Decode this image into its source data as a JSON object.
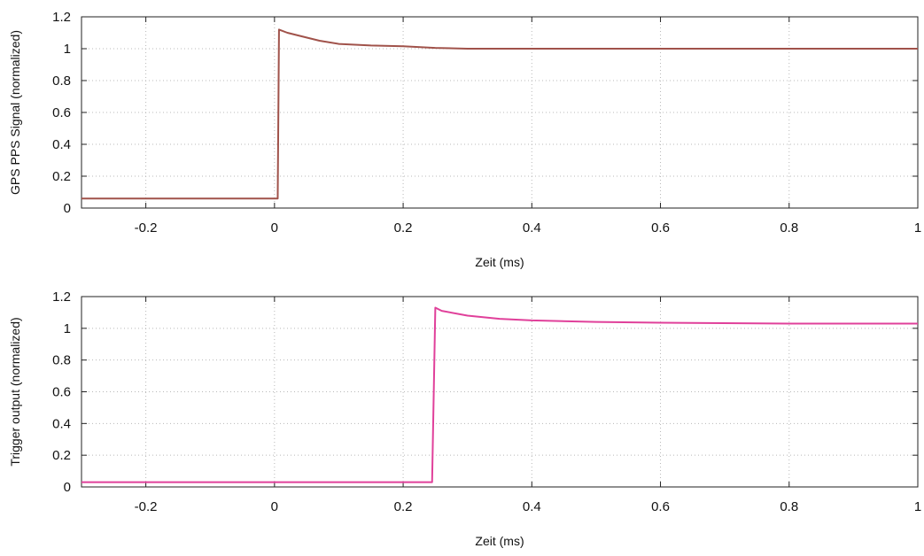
{
  "chart_data": [
    {
      "type": "line",
      "xlabel": "Zeit (ms)",
      "ylabel": "GPS PPS Signal (normalized)",
      "xlim": [
        -0.3,
        1.0
      ],
      "ylim": [
        0,
        1.2
      ],
      "xticks": [
        "-0.2",
        "0",
        "0.2",
        "0.4",
        "0.6",
        "0.8",
        "1"
      ],
      "yticks": [
        "0",
        "0.2",
        "0.4",
        "0.6",
        "0.8",
        "1",
        "1.2"
      ],
      "grid": true,
      "series": [
        {
          "color": "#a0524a",
          "points": [
            [
              -0.3,
              0.06
            ],
            [
              -0.2,
              0.06
            ],
            [
              -0.1,
              0.06
            ],
            [
              0.0,
              0.06
            ],
            [
              0.005,
              0.06
            ],
            [
              0.007,
              1.12
            ],
            [
              0.02,
              1.1
            ],
            [
              0.04,
              1.08
            ],
            [
              0.07,
              1.05
            ],
            [
              0.1,
              1.03
            ],
            [
              0.15,
              1.02
            ],
            [
              0.2,
              1.015
            ],
            [
              0.25,
              1.005
            ],
            [
              0.3,
              1.0
            ],
            [
              0.4,
              1.0
            ],
            [
              0.6,
              1.0
            ],
            [
              0.8,
              1.0
            ],
            [
              1.0,
              1.0
            ]
          ]
        }
      ]
    },
    {
      "type": "line",
      "xlabel": "Zeit (ms)",
      "ylabel": "Trigger output (normalized)",
      "xlim": [
        -0.3,
        1.0
      ],
      "ylim": [
        0,
        1.2
      ],
      "xticks": [
        "-0.2",
        "0",
        "0.2",
        "0.4",
        "0.6",
        "0.8",
        "1"
      ],
      "yticks": [
        "0",
        "0.2",
        "0.4",
        "0.6",
        "0.8",
        "1",
        "1.2"
      ],
      "grid": true,
      "series": [
        {
          "color": "#e0409a",
          "points": [
            [
              -0.3,
              0.03
            ],
            [
              -0.1,
              0.03
            ],
            [
              0.1,
              0.03
            ],
            [
              0.24,
              0.03
            ],
            [
              0.245,
              0.03
            ],
            [
              0.25,
              1.13
            ],
            [
              0.26,
              1.11
            ],
            [
              0.3,
              1.08
            ],
            [
              0.35,
              1.06
            ],
            [
              0.4,
              1.05
            ],
            [
              0.5,
              1.04
            ],
            [
              0.6,
              1.035
            ],
            [
              0.8,
              1.03
            ],
            [
              1.0,
              1.03
            ]
          ]
        }
      ]
    }
  ]
}
